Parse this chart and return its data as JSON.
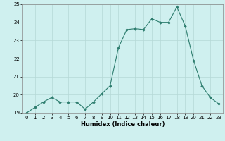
{
  "x": [
    0,
    1,
    2,
    3,
    4,
    5,
    6,
    7,
    8,
    9,
    10,
    11,
    12,
    13,
    14,
    15,
    16,
    17,
    18,
    19,
    20,
    21,
    22,
    23
  ],
  "y": [
    19.0,
    19.3,
    19.6,
    19.85,
    19.6,
    19.6,
    19.6,
    19.2,
    19.6,
    20.05,
    20.5,
    22.6,
    23.6,
    23.65,
    23.6,
    24.2,
    24.0,
    24.0,
    24.85,
    23.8,
    21.9,
    20.5,
    19.85,
    19.5
  ],
  "xlabel": "Humidex (Indice chaleur)",
  "ylim": [
    19,
    25
  ],
  "xlim": [
    -0.5,
    23.5
  ],
  "yticks": [
    19,
    20,
    21,
    22,
    23,
    24,
    25
  ],
  "xticks": [
    0,
    1,
    2,
    3,
    4,
    5,
    6,
    7,
    8,
    9,
    10,
    11,
    12,
    13,
    14,
    15,
    16,
    17,
    18,
    19,
    20,
    21,
    22,
    23
  ],
  "line_color": "#2d7d6e",
  "bg_color": "#cff0ef",
  "grid_color": "#b5d9d6",
  "spine_color": "#888888"
}
